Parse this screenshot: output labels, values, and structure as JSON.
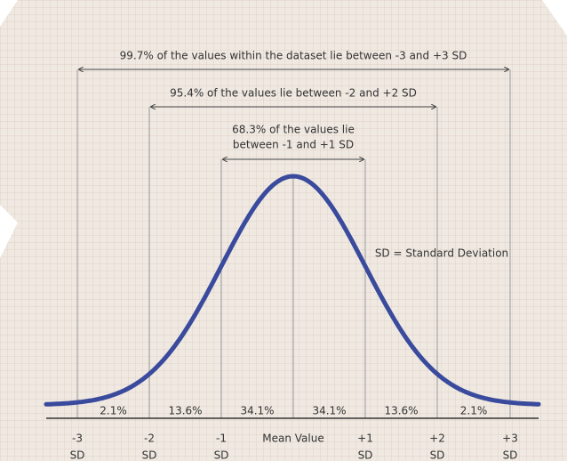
{
  "annotations": {
    "range_3sd": "99.7% of the values within the dataset lie between -3 and +3 SD",
    "range_2sd": "95.4% of the values lie between -2 and +2 SD",
    "range_1sd": [
      "68.3% of the values lie",
      "between -1 and +1 SD"
    ],
    "sd_note": "SD = Standard Deviation"
  },
  "segments": [
    "2.1%",
    "13.6%",
    "34.1%",
    "34.1%",
    "13.6%",
    "2.1%"
  ],
  "axis_labels": [
    {
      "value": "-3",
      "unit": "SD"
    },
    {
      "value": "-2",
      "unit": "SD"
    },
    {
      "value": "-1",
      "unit": "SD"
    },
    {
      "value": "Mean Value"
    },
    {
      "value": "+1",
      "unit": "SD"
    },
    {
      "value": "+2",
      "unit": "SD"
    },
    {
      "value": "+3",
      "unit": "SD"
    }
  ]
}
